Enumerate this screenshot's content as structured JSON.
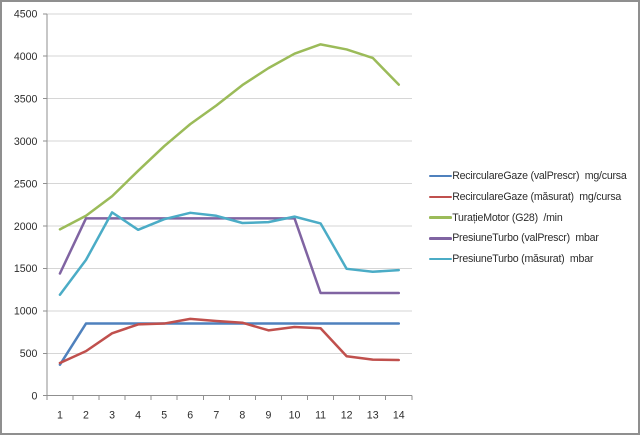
{
  "chart_data": {
    "type": "line",
    "title": "",
    "xlabel": "",
    "ylabel": "",
    "categories": [
      "1",
      "2",
      "3",
      "4",
      "5",
      "6",
      "7",
      "8",
      "9",
      "10",
      "11",
      "12",
      "13",
      "14"
    ],
    "y_ticks": [
      0,
      500,
      1000,
      1500,
      2000,
      2500,
      3000,
      3500,
      4000,
      4500
    ],
    "ylim": [
      0,
      4500
    ],
    "grid": true,
    "legend_position": "right",
    "series": [
      {
        "name": "RecirculareGaze (valPrescr)  mg/cursa",
        "color": "#4F81BD",
        "values": [
          365,
          850,
          850,
          850,
          850,
          850,
          850,
          850,
          850,
          850,
          850,
          850,
          850,
          850
        ]
      },
      {
        "name": "RecirculareGaze (măsurat)  mg/cursa",
        "color": "#C0504D",
        "values": [
          385,
          525,
          735,
          840,
          850,
          905,
          880,
          860,
          770,
          810,
          795,
          465,
          425,
          420
        ]
      },
      {
        "name": "TurațieMotor (G28)  /min",
        "color": "#9BBB59",
        "values": [
          1960,
          2120,
          2350,
          2650,
          2940,
          3200,
          3420,
          3660,
          3860,
          4030,
          4140,
          4080,
          3980,
          3665
        ]
      },
      {
        "name": "PresiuneTurbo (valPrescr)  mbar",
        "color": "#8064A2",
        "values": [
          1440,
          2090,
          2090,
          2090,
          2090,
          2090,
          2090,
          2090,
          2090,
          2090,
          1210,
          1210,
          1210,
          1210
        ]
      },
      {
        "name": "PresiuneTurbo (măsurat)  mbar",
        "color": "#4BACC6",
        "values": [
          1190,
          1600,
          2160,
          1955,
          2080,
          2155,
          2120,
          2035,
          2045,
          2110,
          2030,
          1495,
          1460,
          1480
        ]
      }
    ],
    "style": {
      "gridline_color": "#d6d6d6",
      "axis_color": "#8f8f8f",
      "tick_label_color": "#2c2c2c",
      "background_color": "#ffffff",
      "border_color": "#8f8f8f"
    }
  }
}
